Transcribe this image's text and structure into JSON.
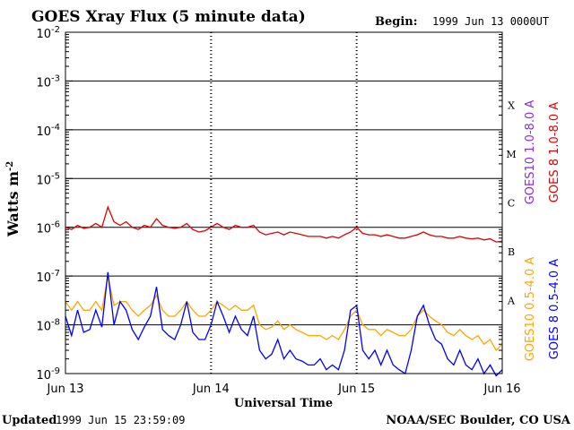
{
  "header": {
    "title": "GOES Xray Flux (5 minute data)",
    "begin_label": "Begin:",
    "begin_value": "1999 Jun 13 0000UT"
  },
  "footer": {
    "updated_label": "Updated",
    "updated_value": "1999 Jun 15 23:59:09",
    "credit": "NOAA/SEC Boulder, CO USA"
  },
  "chart_data": {
    "type": "line",
    "ylabel": "Watts m",
    "ylabel_sup": "-2",
    "xlabel": "Universal Time",
    "y_scale": "log",
    "ylim": [
      1e-09,
      0.01
    ],
    "y_ticks": [
      {
        "base": "10",
        "exp": "-2"
      },
      {
        "base": "10",
        "exp": "-3"
      },
      {
        "base": "10",
        "exp": "-4"
      },
      {
        "base": "10",
        "exp": "-5"
      },
      {
        "base": "10",
        "exp": "-6"
      },
      {
        "base": "10",
        "exp": "-7"
      },
      {
        "base": "10",
        "exp": "-8"
      },
      {
        "base": "10",
        "exp": "-9"
      }
    ],
    "x_range_hours": [
      0,
      72
    ],
    "x_ticks": [
      "Jun 13",
      "Jun 14",
      "Jun 15",
      "Jun 16"
    ],
    "flare_classes": [
      "X",
      "M",
      "C",
      "B",
      "A"
    ],
    "grid": "horizontal lines at each decade from 1e-8 to 1e-3",
    "legend_placement": "right, vertical",
    "legend": [
      {
        "label": "GOES10 1.0-8.0 A",
        "color": "#8a2be2"
      },
      {
        "label": "GOES 8 1.0-8.0 A",
        "color": "#e00000"
      },
      {
        "label": "GOES10 0.5-4.0 A",
        "color": "#ffa500"
      },
      {
        "label": "GOES 8 0.5-4.0 A",
        "color": "#0000ff"
      }
    ],
    "series": [
      {
        "name": "GOES 8 1.0-8.0 A",
        "color": "#e00000",
        "x_hours": [
          0,
          1,
          2,
          3,
          4,
          5,
          6,
          7,
          8,
          9,
          10,
          11,
          12,
          13,
          14,
          15,
          16,
          17,
          18,
          19,
          20,
          21,
          22,
          23,
          24,
          25,
          26,
          27,
          28,
          29,
          30,
          31,
          32,
          33,
          34,
          35,
          36,
          37,
          38,
          39,
          40,
          41,
          42,
          43,
          44,
          45,
          46,
          47,
          48,
          49,
          50,
          51,
          52,
          53,
          54,
          55,
          56,
          57,
          58,
          59,
          60,
          61,
          62,
          63,
          64,
          65,
          66,
          67,
          68,
          69,
          70,
          71,
          72
        ],
        "y": [
          1e-06,
          9e-07,
          1.1e-06,
          9.5e-07,
          1e-06,
          1.2e-06,
          1e-06,
          2.6e-06,
          1.3e-06,
          1.1e-06,
          1.3e-06,
          1e-06,
          9e-07,
          1.1e-06,
          1e-06,
          1.5e-06,
          1.1e-06,
          1e-06,
          9.5e-07,
          1e-06,
          1.2e-06,
          9e-07,
          8e-07,
          8.5e-07,
          1e-06,
          1.2e-06,
          1e-06,
          9e-07,
          1.1e-06,
          1e-06,
          1e-06,
          1.1e-06,
          8e-07,
          7e-07,
          7.5e-07,
          8e-07,
          7e-07,
          8e-07,
          7.5e-07,
          7e-07,
          6.5e-07,
          6.5e-07,
          6.5e-07,
          6e-07,
          6.5e-07,
          6e-07,
          7e-07,
          8e-07,
          1e-06,
          7.5e-07,
          7e-07,
          7e-07,
          6.5e-07,
          7e-07,
          6.5e-07,
          6e-07,
          6e-07,
          6.5e-07,
          7e-07,
          8e-07,
          7e-07,
          6.5e-07,
          6.5e-07,
          6e-07,
          6e-07,
          6.5e-07,
          6e-07,
          5.8e-07,
          6e-07,
          5.5e-07,
          5.8e-07,
          5e-07,
          5.2e-07
        ]
      },
      {
        "name": "GOES10 0.5-4.0 A",
        "color": "#ffa500",
        "x_hours": [
          0,
          1,
          2,
          3,
          4,
          5,
          6,
          7,
          8,
          9,
          10,
          11,
          12,
          13,
          14,
          15,
          16,
          17,
          18,
          19,
          20,
          21,
          22,
          23,
          24,
          25,
          26,
          27,
          28,
          29,
          30,
          31,
          32,
          33,
          34,
          35,
          36,
          37,
          38,
          39,
          40,
          41,
          42,
          43,
          44,
          45,
          46,
          47,
          48,
          49,
          50,
          51,
          52,
          53,
          54,
          55,
          56,
          57,
          58,
          59,
          60,
          61,
          62,
          63,
          64,
          65,
          66,
          67,
          68,
          69,
          70,
          71,
          72
        ],
        "y": [
          3e-08,
          2e-08,
          3e-08,
          2e-08,
          2e-08,
          3e-08,
          2e-08,
          1e-07,
          2.5e-08,
          3e-08,
          3e-08,
          2e-08,
          1.5e-08,
          2e-08,
          2.5e-08,
          4e-08,
          2e-08,
          1.5e-08,
          1.5e-08,
          2e-08,
          3e-08,
          2e-08,
          1.5e-08,
          1.5e-08,
          2e-08,
          3e-08,
          2.5e-08,
          2e-08,
          2.5e-08,
          2e-08,
          2e-08,
          2.5e-08,
          1e-08,
          8e-09,
          9e-09,
          1.2e-08,
          8e-09,
          1e-08,
          8e-09,
          7e-09,
          6e-09,
          6e-09,
          6e-09,
          5e-09,
          6e-09,
          5e-09,
          8e-09,
          1.5e-08,
          2e-08,
          1e-08,
          8e-09,
          8e-09,
          6e-09,
          8e-09,
          7e-09,
          6e-09,
          6e-09,
          8e-09,
          1.5e-08,
          2e-08,
          1.5e-08,
          1.2e-08,
          1e-08,
          7e-09,
          6e-09,
          8e-09,
          6e-09,
          5e-09,
          6e-09,
          4e-09,
          5e-09,
          3e-09,
          4e-09
        ]
      },
      {
        "name": "GOES 8 0.5-4.0 A",
        "color": "#0000ff",
        "x_hours": [
          0,
          1,
          2,
          3,
          4,
          5,
          6,
          7,
          8,
          9,
          10,
          11,
          12,
          13,
          14,
          15,
          16,
          17,
          18,
          19,
          20,
          21,
          22,
          23,
          24,
          25,
          26,
          27,
          28,
          29,
          30,
          31,
          32,
          33,
          34,
          35,
          36,
          37,
          38,
          39,
          40,
          41,
          42,
          43,
          44,
          45,
          46,
          47,
          48,
          49,
          50,
          51,
          52,
          53,
          54,
          55,
          56,
          57,
          58,
          59,
          60,
          61,
          62,
          63,
          64,
          65,
          66,
          67,
          68,
          69,
          70,
          71,
          72
        ],
        "y": [
          1.5e-08,
          6e-09,
          2e-08,
          7e-09,
          8e-09,
          2e-08,
          9e-09,
          1.2e-07,
          1e-08,
          3e-08,
          2e-08,
          8e-09,
          5e-09,
          9e-09,
          1.5e-08,
          6e-08,
          8e-09,
          6e-09,
          5e-09,
          1e-08,
          3e-08,
          7e-09,
          5e-09,
          5e-09,
          1e-08,
          3e-08,
          1.5e-08,
          7e-09,
          1.5e-08,
          8e-09,
          6e-09,
          1.5e-08,
          3e-09,
          2e-09,
          2.5e-09,
          5e-09,
          2e-09,
          3e-09,
          2e-09,
          1.8e-09,
          1.5e-09,
          1.5e-09,
          2e-09,
          1.2e-09,
          1.5e-09,
          1.2e-09,
          3e-09,
          2e-08,
          2.5e-08,
          3e-09,
          2e-09,
          3e-09,
          1.5e-09,
          3e-09,
          1.5e-09,
          1.2e-09,
          1e-09,
          3e-09,
          1.5e-08,
          2.5e-08,
          1e-08,
          5e-09,
          4e-09,
          2e-09,
          1.5e-09,
          3e-09,
          1.5e-09,
          1.2e-09,
          2e-09,
          1e-09,
          1.5e-09,
          9e-10,
          1.2e-09
        ]
      }
    ]
  }
}
